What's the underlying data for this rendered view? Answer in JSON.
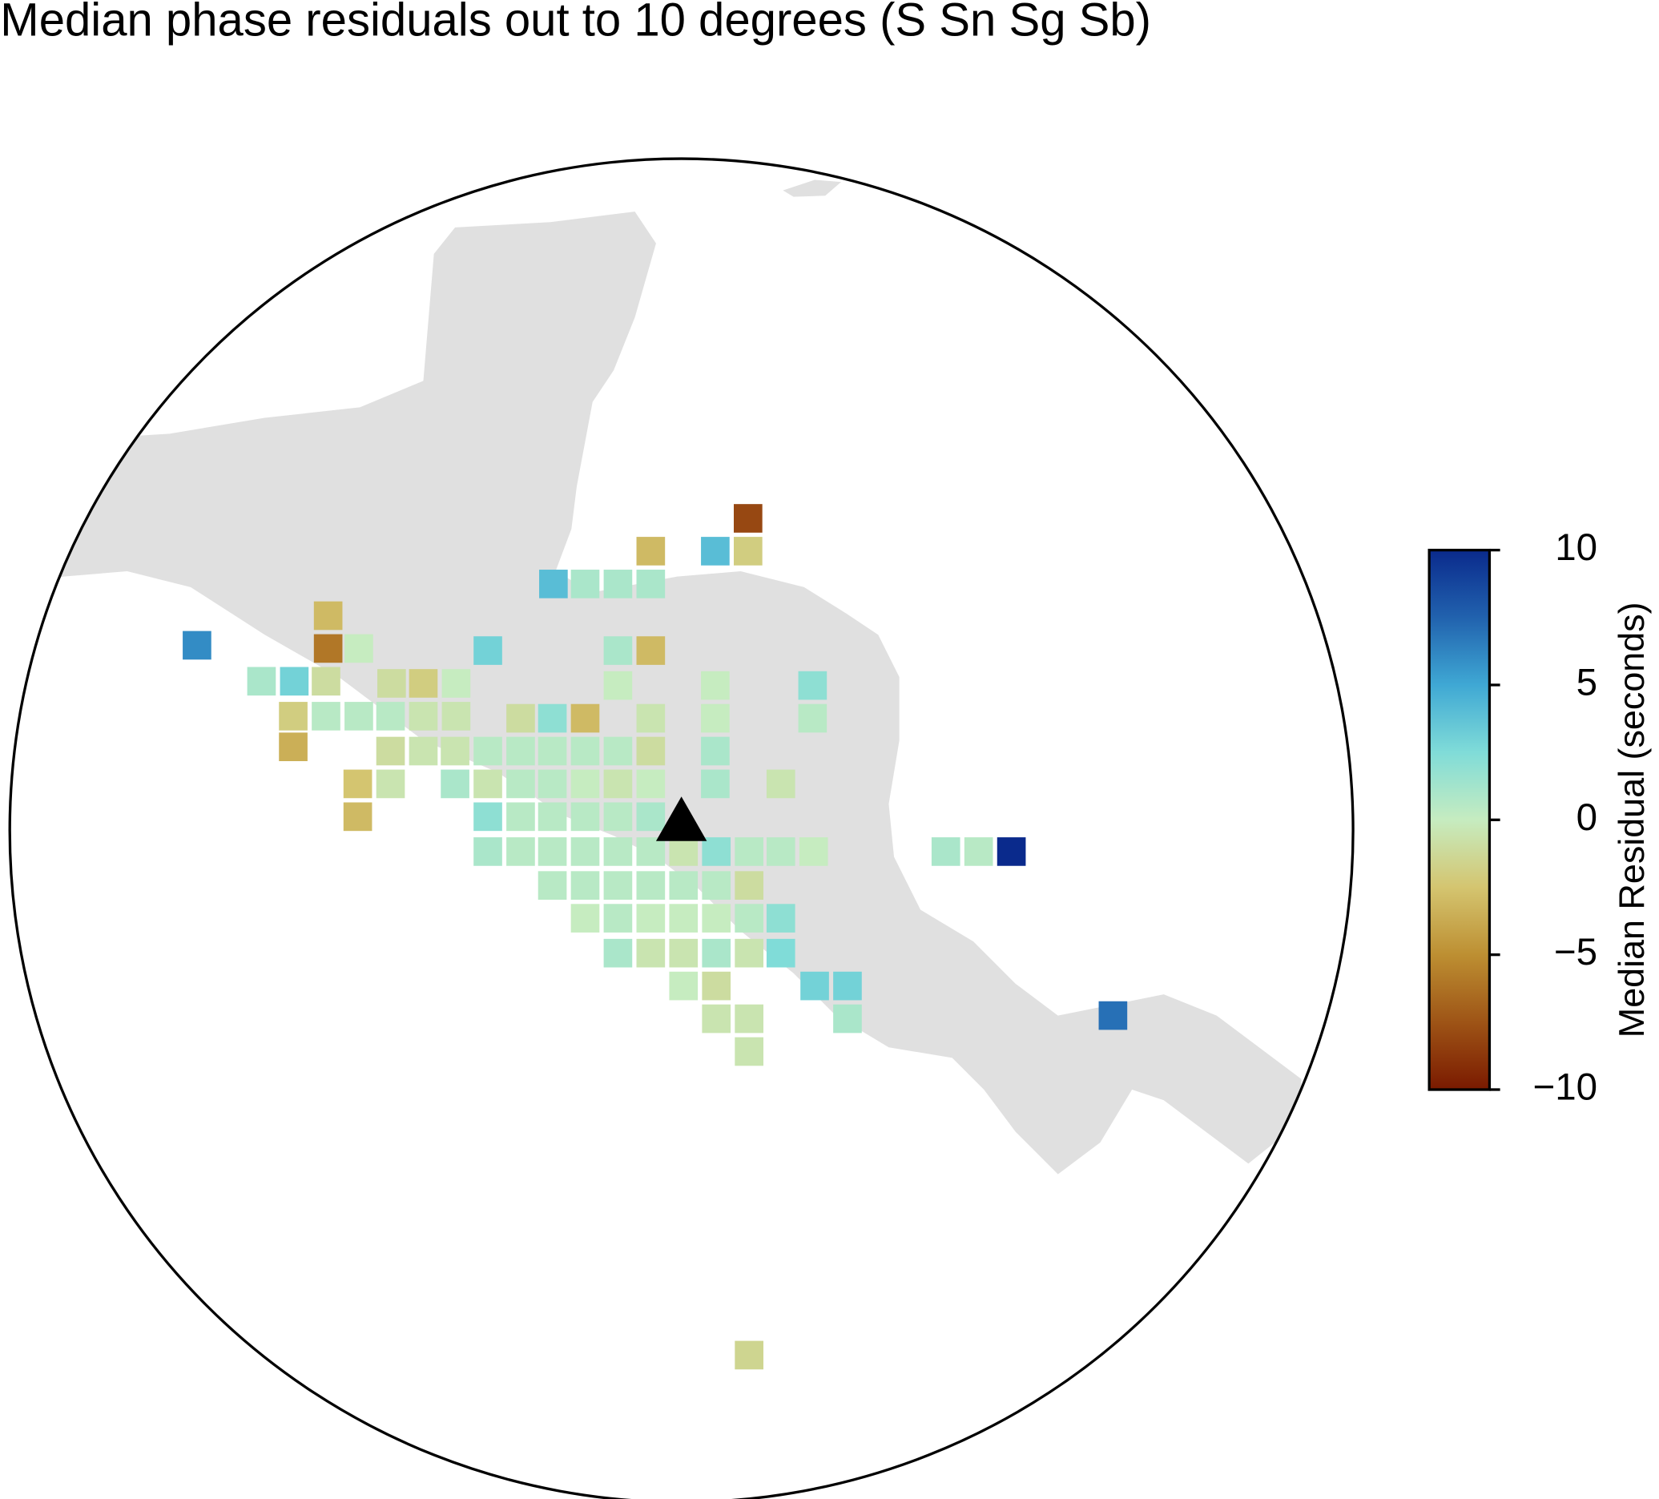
{
  "chart_data": {
    "type": "map",
    "title": "Median phase residuals out to 10 degrees (S Sn Sg Sb)",
    "colorbar_label": "Median Residual (seconds)",
    "clim": [
      -10,
      10
    ],
    "cticks": [
      {
        "value": -10,
        "label": "−10"
      },
      {
        "value": -5,
        "label": "−5"
      },
      0,
      5,
      10
    ],
    "colormap": [
      "#7a1a00",
      "#9e5416",
      "#bd8f32",
      "#d4c570",
      "#c6ecc0",
      "#80dcd8",
      "#3fa8d4",
      "#2162ae",
      "#0a2a8c"
    ],
    "land_color": "#e0e0e0",
    "values": [
      -8,
      -3,
      4,
      -2,
      4,
      1,
      1,
      1,
      -3,
      6,
      -6,
      0,
      3,
      1,
      -3,
      1,
      3,
      -1,
      -1,
      -2,
      0,
      0,
      0,
      2,
      -2,
      0.5,
      0.5,
      0.5,
      -0.5,
      -0.5,
      -1,
      2,
      -3,
      -0.5,
      0,
      0.5,
      -3.5,
      -1,
      -0.5,
      -0.5,
      0.5,
      0.5,
      0.5,
      0.5,
      0.5,
      -1,
      1,
      -2.5,
      -0.5,
      1,
      -0.5,
      0.5,
      0.5,
      0,
      -0.5,
      0,
      1,
      -0.5,
      -3,
      2,
      0.5,
      0.5,
      0.5,
      0.5,
      1,
      1,
      0.5,
      0.5,
      0.5,
      0.5,
      0.5,
      -0.5,
      2,
      0.5,
      0.5,
      0,
      1,
      0.5,
      10,
      0.5,
      0.5,
      0.5,
      0.5,
      0.5,
      0.5,
      -1,
      0,
      0.5,
      0,
      0,
      0,
      0.5,
      2,
      1,
      -0.5,
      -0.5,
      1,
      -0.5,
      2.5,
      0,
      -1,
      3,
      3,
      -0.5,
      -0.5,
      1,
      7,
      -0.5,
      -1.5
    ]
  }
}
